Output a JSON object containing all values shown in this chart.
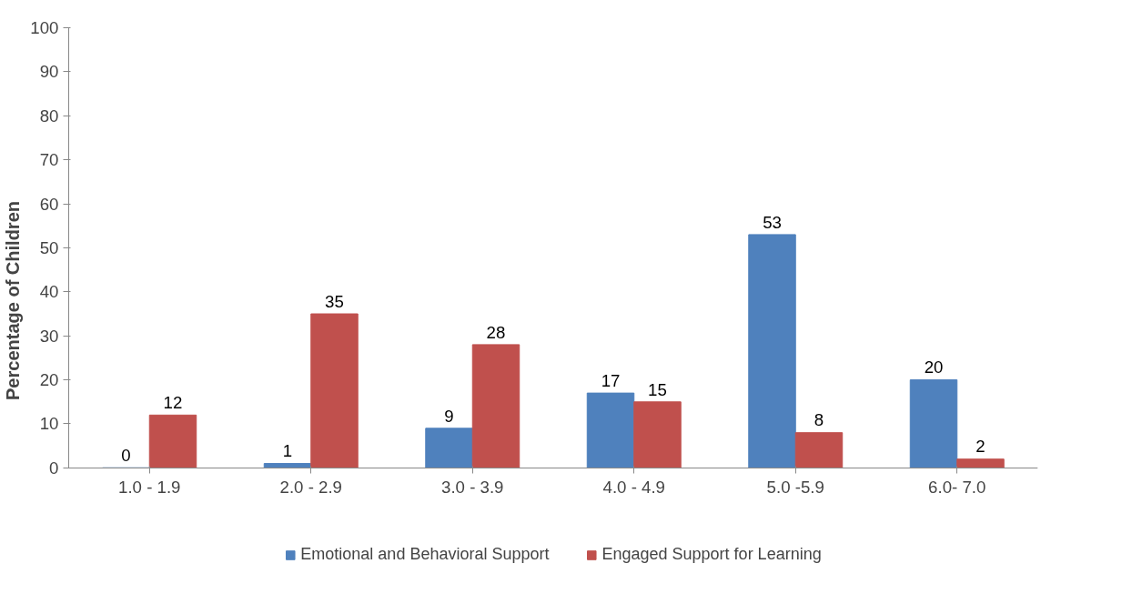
{
  "chart_data": {
    "type": "bar",
    "ylabel": "Percentage of Children",
    "categories": [
      "1.0 - 1.9",
      "2.0 - 2.9",
      "3.0 - 3.9",
      "4.0 - 4.9",
      "5.0 -5.9",
      "6.0- 7.0"
    ],
    "series": [
      {
        "name": "Emotional and Behavioral Support",
        "color": "#4f81bd",
        "values": [
          0,
          1,
          9,
          17,
          53,
          20
        ]
      },
      {
        "name": "Engaged Support for Learning",
        "color": "#c0504d",
        "values": [
          12,
          35,
          28,
          15,
          8,
          2
        ]
      }
    ],
    "ylim": [
      0,
      100
    ],
    "yticks": [
      0,
      10,
      20,
      30,
      40,
      50,
      60,
      70,
      80,
      90,
      100
    ],
    "grid": false,
    "legend": "bottom",
    "data_labels": true
  }
}
